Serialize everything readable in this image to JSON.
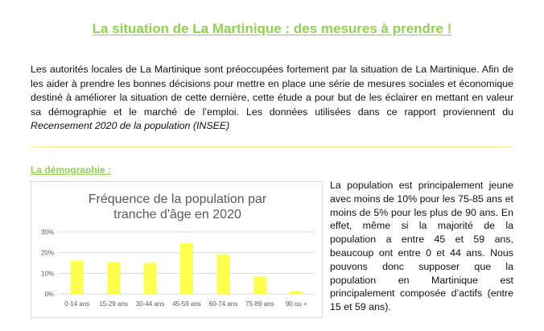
{
  "title": "La situation de La Martinique : des mesures à prendre !",
  "intro": {
    "text": "Les autorités locales de La Martinique sont préoccupées fortement par la situation de La Martinique. Afin de les aider à prendre les bonnes décisions pour mettre en place une série de mesures sociales et économique destiné à améliorer la situation de cette dernière, cette étude a pour but de les éclairer en mettant en valeur sa démographie et le marché de l’emploi. Les données utilisées dans ce rapport proviennent du ",
    "source": "Recensement 2020 de la population (INSEE)"
  },
  "section": {
    "title": "La démographie :"
  },
  "paragraph": "La population est principalement jeune avec moins de 10% pour les 75-85 ans et moins de 5% pour les plus de 90 ans. En effet, même si la majorité de la population a entre 45 et 59 ans, beaucoup ont entre 0 et 44 ans. Nous pouvons donc supposer que la population en Martinique est principalement composée d’actifs (entre 15 et 59 ans).",
  "colors": {
    "accent": "#92D050",
    "bar": "#FFFF4D",
    "grid": "#d9d9d9"
  },
  "chart_data": {
    "type": "bar",
    "title_lines": [
      "Fréquence de la  population par",
      "tranche d'âge en 2020"
    ],
    "categories": [
      "0-14 ans",
      "15-29 ans",
      "30-44 ans",
      "45-59 ans",
      "60-74 ans",
      "75-89 ans",
      "90 ou +"
    ],
    "values": [
      16,
      15.5,
      15,
      24.5,
      19,
      8.5,
      1.5
    ],
    "y_ticks": [
      "0%",
      "10%",
      "20%",
      "30%"
    ],
    "ylim": [
      0,
      30
    ],
    "grid": true
  }
}
